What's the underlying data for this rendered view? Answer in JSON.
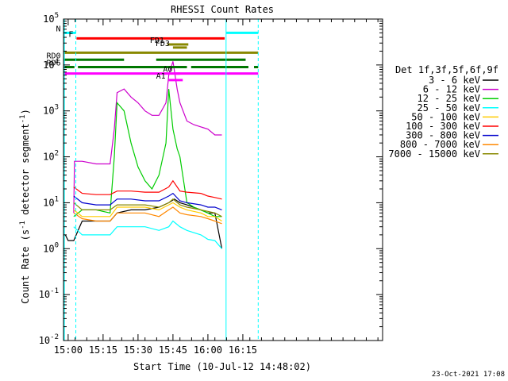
{
  "chart_data": {
    "type": "line",
    "title": "RHESSI Count Rates",
    "xlabel": "Start Time (10-Jul-12 14:48:02)",
    "ylabel_prefix": "Count Rate (s",
    "ylabel_sup": "-1",
    "ylabel_mid": " detector segment",
    "ylabel_sup2": "-1",
    "ylabel_suffix": ")",
    "y_scale": "log",
    "ylim": [
      0.01,
      100000
    ],
    "xlim_minutes": [
      14.9667,
      17.25
    ],
    "y_ticks": [
      {
        "base": "10",
        "exp": "5",
        "value": 100000
      },
      {
        "base": "10",
        "exp": "4",
        "value": 10000
      },
      {
        "base": "10",
        "exp": "3",
        "value": 1000
      },
      {
        "base": "10",
        "exp": "2",
        "value": 100
      },
      {
        "base": "10",
        "exp": "1",
        "value": 10
      },
      {
        "base": "10",
        "exp": "0",
        "value": 1
      },
      {
        "base": "10",
        "exp": "-1",
        "value": 0.1
      },
      {
        "base": "10",
        "exp": "-2",
        "value": 0.01
      }
    ],
    "x_ticks": [
      {
        "label": "15:00",
        "hours": 15.0
      },
      {
        "label": "15:15",
        "hours": 15.25
      },
      {
        "label": "15:30",
        "hours": 15.5
      },
      {
        "label": "15:45",
        "hours": 15.75
      },
      {
        "label": "16:00",
        "hours": 16.0
      },
      {
        "label": "16:15",
        "hours": 16.25
      }
    ],
    "legend_title": "Det 1f,3f,5f,6f,9f",
    "legend_position": "right",
    "series": [
      {
        "name": "3 - 6 keV",
        "color": "#000000",
        "x": [
          14.98,
          15.0,
          15.04,
          15.1,
          15.2,
          15.3,
          15.35,
          15.45,
          15.55,
          15.65,
          15.72,
          15.76,
          15.8,
          15.85,
          15.95,
          16.0,
          16.05,
          16.1
        ],
        "y": [
          2,
          1.5,
          1.5,
          4,
          4,
          4,
          6,
          7,
          7,
          8,
          10,
          12,
          10,
          9,
          7,
          6,
          6,
          1
        ]
      },
      {
        "name": "6 - 12 keV",
        "color": "#cc00cc",
        "x": [
          15.04,
          15.045,
          15.1,
          15.2,
          15.3,
          15.33,
          15.35,
          15.4,
          15.45,
          15.5,
          15.55,
          15.6,
          15.65,
          15.7,
          15.72,
          15.75,
          15.78,
          15.8,
          15.85,
          15.9,
          16.0,
          16.05,
          16.1
        ],
        "y": [
          6,
          80,
          80,
          70,
          70,
          400,
          2500,
          3000,
          2000,
          1500,
          1000,
          800,
          800,
          1500,
          6000,
          12000,
          3000,
          1500,
          600,
          500,
          400,
          300,
          300
        ]
      },
      {
        "name": "12 - 25 keV",
        "color": "#00cc00",
        "x": [
          15.04,
          15.1,
          15.2,
          15.3,
          15.33,
          15.35,
          15.4,
          15.45,
          15.5,
          15.55,
          15.6,
          15.65,
          15.7,
          15.72,
          15.75,
          15.78,
          15.8,
          15.85,
          15.9,
          16.0,
          16.05,
          16.1
        ],
        "y": [
          5,
          7,
          7,
          6,
          100,
          1500,
          1000,
          200,
          60,
          30,
          20,
          40,
          200,
          3000,
          400,
          150,
          100,
          10,
          8,
          6,
          5,
          5
        ]
      },
      {
        "name": "25 - 50 keV",
        "color": "#00ffff",
        "x": [
          15.04,
          15.1,
          15.2,
          15.3,
          15.35,
          15.45,
          15.55,
          15.65,
          15.72,
          15.75,
          15.8,
          15.85,
          15.95,
          16.0,
          16.05,
          16.1
        ],
        "y": [
          3,
          2,
          2,
          2,
          3,
          3,
          3,
          2.5,
          3,
          4,
          3,
          2.5,
          2,
          1.6,
          1.5,
          1
        ]
      },
      {
        "name": "50 - 100 keV",
        "color": "#ffcc00",
        "x": [
          15.04,
          15.1,
          15.2,
          15.3,
          15.35,
          15.45,
          15.55,
          15.65,
          15.72,
          15.75,
          15.8,
          15.85,
          15.95,
          16.0,
          16.05,
          16.1
        ],
        "y": [
          7,
          5,
          5,
          5,
          8,
          8,
          8,
          7,
          9,
          10,
          8,
          7,
          6,
          5,
          5,
          4
        ]
      },
      {
        "name": "100 - 300 keV",
        "color": "#ff0000",
        "x": [
          15.04,
          15.1,
          15.2,
          15.3,
          15.35,
          15.45,
          15.55,
          15.65,
          15.72,
          15.75,
          15.8,
          15.85,
          15.95,
          16.0,
          16.05,
          16.1
        ],
        "y": [
          22,
          16,
          15,
          15,
          18,
          18,
          17,
          17,
          22,
          30,
          18,
          17,
          16,
          14,
          13,
          12
        ]
      },
      {
        "name": "300 - 800 keV",
        "color": "#0000cc",
        "x": [
          15.04,
          15.1,
          15.2,
          15.3,
          15.35,
          15.45,
          15.55,
          15.65,
          15.72,
          15.75,
          15.8,
          15.85,
          15.95,
          16.0,
          16.05,
          16.1
        ],
        "y": [
          14,
          10,
          9,
          9,
          12,
          12,
          11,
          11,
          14,
          16,
          11,
          10,
          9,
          8,
          8,
          7
        ]
      },
      {
        "name": "800 - 7000 keV",
        "color": "#ff8800",
        "x": [
          15.04,
          15.1,
          15.2,
          15.3,
          15.35,
          15.45,
          15.55,
          15.65,
          15.72,
          15.75,
          15.8,
          15.85,
          15.95,
          16.0,
          16.05,
          16.1
        ],
        "y": [
          6,
          4.5,
          4,
          4,
          6,
          6,
          6,
          5,
          7,
          8,
          6,
          5.5,
          5,
          4.5,
          4,
          3.5
        ]
      },
      {
        "name": "7000 - 15000 keV",
        "color": "#888800",
        "x": [
          15.04,
          15.1,
          15.2,
          15.3,
          15.35,
          15.45,
          15.55,
          15.65,
          15.72,
          15.75,
          15.8,
          15.85,
          15.95,
          16.0,
          16.05,
          16.1
        ],
        "y": [
          10,
          7,
          7,
          7,
          9,
          9,
          9,
          8,
          10,
          12,
          9,
          8,
          7,
          6.5,
          6,
          5
        ]
      }
    ],
    "flag_bars": [
      {
        "label": "N",
        "color": "#00ffff",
        "yval": 50000,
        "segments": [
          [
            14.97,
            15.055
          ],
          [
            16.13,
            16.36
          ]
        ]
      },
      {
        "label": "F",
        "color": "#ff0000",
        "yval": 38000,
        "segments": [
          [
            15.06,
            16.12
          ]
        ]
      },
      {
        "label": "FD1",
        "color": "#888800",
        "yval": 28000,
        "segments": [
          [
            15.71,
            15.86
          ]
        ]
      },
      {
        "label": "FD3",
        "color": "#888800",
        "yval": 24000,
        "segments": [
          [
            15.75,
            15.85
          ]
        ]
      },
      {
        "label": "",
        "color": "#888800",
        "yval": 18500,
        "segments": [
          [
            14.97,
            16.36
          ]
        ]
      },
      {
        "label": "RD0",
        "color": "#007700",
        "yval": 13000,
        "segments": [
          [
            14.97,
            15.4
          ],
          [
            15.63,
            16.27
          ]
        ]
      },
      {
        "label": "RD6",
        "color": "#007700",
        "yval": 9000,
        "segments": [
          [
            14.97,
            15.045
          ],
          [
            15.07,
            15.85
          ],
          [
            15.88,
            16.29
          ],
          [
            16.33,
            16.36
          ]
        ]
      },
      {
        "label": "",
        "color": "#ff00ff",
        "yval": 6500,
        "segments": [
          [
            14.97,
            16.36
          ]
        ]
      },
      {
        "label": "A1",
        "color": "#ff00ff",
        "yval": 4700,
        "segments": [
          [
            15.72,
            15.82
          ]
        ]
      },
      {
        "label": "A0",
        "color": "#ff00ff",
        "yval": 6500,
        "segments": [
          [
            15.77,
            15.8
          ]
        ]
      }
    ],
    "vlines": [
      {
        "hours": 15.055,
        "color": "#00ffff",
        "style": "dashed"
      },
      {
        "hours": 16.13,
        "color": "#00ffff",
        "style": "solid"
      },
      {
        "hours": 16.36,
        "color": "#00ffff",
        "style": "dashed"
      },
      {
        "hours": 14.973,
        "color": "#00ffff",
        "style": "solid"
      }
    ],
    "grid": false
  },
  "footer": {
    "timestamp": "23-Oct-2021 17:08"
  }
}
